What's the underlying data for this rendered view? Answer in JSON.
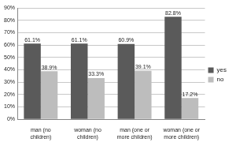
{
  "chart_data": {
    "type": "bar",
    "categories": [
      "man (no children)",
      "woman (no children)",
      "man (one or more children)",
      "woman (one or more children)"
    ],
    "series": [
      {
        "name": "yes",
        "color": "#5a5a5a",
        "values": [
          61.1,
          61.1,
          60.9,
          82.8
        ],
        "value_labels": [
          "61.1%",
          "61.1%",
          "60.9%",
          "82.8%"
        ]
      },
      {
        "name": "no",
        "color": "#bdbdbd",
        "values": [
          38.9,
          33.3,
          39.1,
          17.2
        ],
        "value_labels": [
          "38.9%",
          "33.3%",
          "39.1%",
          "17.2%"
        ]
      }
    ],
    "ylim": [
      0,
      90
    ],
    "yticks": [
      {
        "value": 0,
        "label": "0%"
      },
      {
        "value": 10,
        "label": "10%"
      },
      {
        "value": 20,
        "label": "20%"
      },
      {
        "value": 30,
        "label": "30%"
      },
      {
        "value": 40,
        "label": "40%"
      },
      {
        "value": 50,
        "label": "50%"
      },
      {
        "value": 60,
        "label": "60%"
      },
      {
        "value": 70,
        "label": "70%"
      },
      {
        "value": 80,
        "label": "80%"
      },
      {
        "value": 90,
        "label": "90%"
      }
    ],
    "grid": true,
    "legend": "right",
    "data_labels": true
  }
}
